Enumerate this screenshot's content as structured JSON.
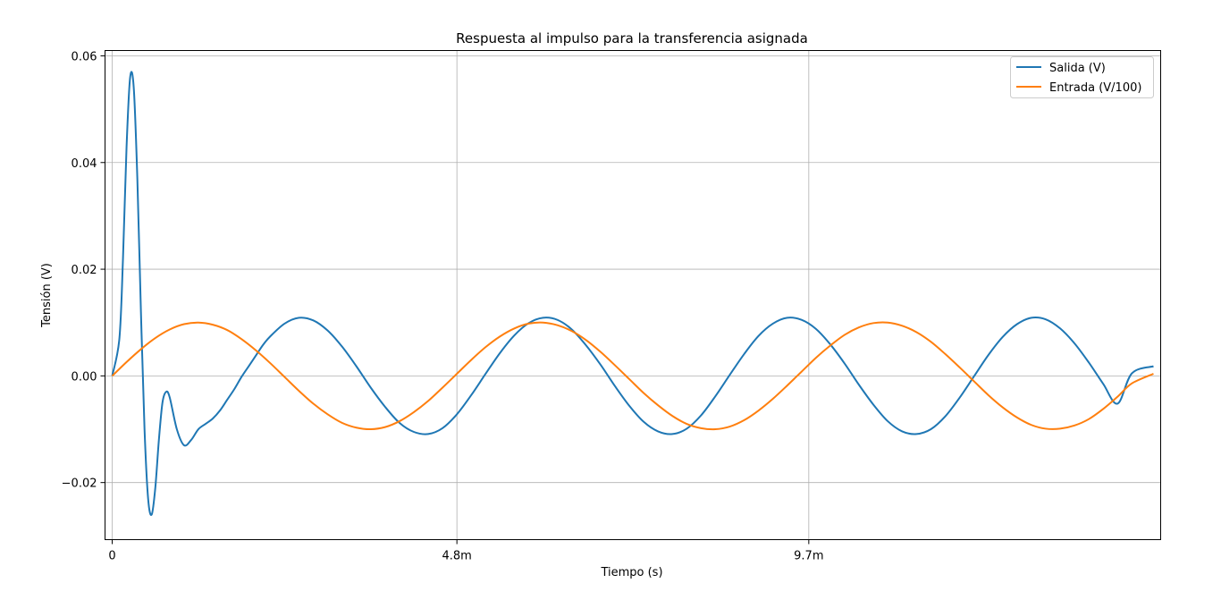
{
  "chart_data": {
    "type": "line",
    "title": "Respuesta al impulso para la transferencia asignada",
    "xlabel": "Tiempo (s)",
    "ylabel": "Tensión (V)",
    "xlim": [
      -0.0001,
      0.0146
    ],
    "ylim": [
      -0.0307,
      0.061
    ],
    "grid": true,
    "legend": "top-right",
    "x_ticks": [
      {
        "value": 0,
        "label": "0"
      },
      {
        "value": 0.0048,
        "label": "4.8m"
      },
      {
        "value": 0.0097,
        "label": "9.7m"
      }
    ],
    "y_ticks": [
      {
        "value": -0.02,
        "label": "−0.02"
      },
      {
        "value": 0.0,
        "label": "0.00"
      },
      {
        "value": 0.02,
        "label": "0.02"
      },
      {
        "value": 0.04,
        "label": "0.04"
      },
      {
        "value": 0.06,
        "label": "0.06"
      }
    ],
    "series": [
      {
        "name": "Salida (V)",
        "color": "#1f77b4",
        "x": [
          0,
          0.0001,
          0.00015,
          0.0002,
          0.00025,
          0.0003,
          0.00035,
          0.0004,
          0.00045,
          0.0005,
          0.00055,
          0.0006,
          0.00065,
          0.0007,
          0.00075,
          0.0008,
          0.0009,
          0.001,
          0.0011,
          0.0012,
          0.0013,
          0.0014,
          0.0015,
          0.0016,
          0.0017,
          0.0018,
          0.0019,
          0.002,
          0.0021,
          0.0022,
          0.0024,
          0.0026,
          0.0028,
          0.003,
          0.0032,
          0.0034,
          0.0036,
          0.0038,
          0.004,
          0.0042,
          0.0044,
          0.0046,
          0.0048,
          0.005,
          0.0052,
          0.0054,
          0.0056,
          0.0058,
          0.006,
          0.0062,
          0.0064,
          0.0066,
          0.0068,
          0.007,
          0.0072,
          0.0074,
          0.0076,
          0.0078,
          0.008,
          0.0082,
          0.0084,
          0.0086,
          0.0088,
          0.009,
          0.0092,
          0.0094,
          0.0096,
          0.0098,
          0.01,
          0.0102,
          0.0104,
          0.0106,
          0.0108,
          0.011,
          0.0112,
          0.0114,
          0.0116,
          0.0118,
          0.012,
          0.0122,
          0.0124,
          0.0126,
          0.0128,
          0.013,
          0.0132,
          0.0134,
          0.0136,
          0.0138,
          0.014,
          0.0142,
          0.0145
        ],
        "y": [
          0.0,
          0.007,
          0.022,
          0.043,
          0.056,
          0.054,
          0.037,
          0.012,
          -0.01,
          -0.023,
          -0.026,
          -0.021,
          -0.012,
          -0.005,
          -0.003,
          -0.004,
          -0.01,
          -0.013,
          -0.012,
          -0.01,
          -0.009,
          -0.008,
          -0.0065,
          -0.0045,
          -0.0025,
          -0.0002,
          0.0018,
          0.0038,
          0.0058,
          0.0074,
          0.0098,
          0.0109,
          0.0104,
          0.0085,
          0.0055,
          0.0018,
          -0.0022,
          -0.0058,
          -0.0088,
          -0.0105,
          -0.0109,
          -0.0098,
          -0.0072,
          -0.0036,
          0.0004,
          0.0043,
          0.0076,
          0.0099,
          0.0109,
          0.0105,
          0.0087,
          0.0057,
          0.0021,
          -0.0019,
          -0.0056,
          -0.0086,
          -0.0104,
          -0.0109,
          -0.0099,
          -0.0074,
          -0.0038,
          0.0002,
          0.0041,
          0.0075,
          0.0098,
          0.0109,
          0.0105,
          0.0088,
          0.0059,
          0.0023,
          -0.0017,
          -0.0054,
          -0.0085,
          -0.0104,
          -0.0109,
          -0.01,
          -0.0076,
          -0.0041,
          -0.0001,
          0.0039,
          0.0073,
          0.0097,
          0.0109,
          0.0106,
          0.0089,
          0.0061,
          0.0025,
          -0.0015,
          -0.0052,
          0.0005,
          0.0018
        ]
      },
      {
        "name": "Entrada (V/100)",
        "color": "#ff7f0e",
        "x": [
          0,
          0.0002,
          0.0004,
          0.0006,
          0.0008,
          0.001,
          0.0012,
          0.0014,
          0.0016,
          0.0018,
          0.002,
          0.0022,
          0.0024,
          0.0026,
          0.0028,
          0.003,
          0.0032,
          0.0034,
          0.0036,
          0.0038,
          0.004,
          0.0042,
          0.0044,
          0.0046,
          0.0048,
          0.005,
          0.0052,
          0.0054,
          0.0056,
          0.0058,
          0.006,
          0.0062,
          0.0064,
          0.0066,
          0.0068,
          0.007,
          0.0072,
          0.0074,
          0.0076,
          0.0078,
          0.008,
          0.0082,
          0.0084,
          0.0086,
          0.0088,
          0.009,
          0.0092,
          0.0094,
          0.0096,
          0.0098,
          0.01,
          0.0102,
          0.0104,
          0.0106,
          0.0108,
          0.011,
          0.0112,
          0.0114,
          0.0116,
          0.0118,
          0.012,
          0.0122,
          0.0124,
          0.0126,
          0.0128,
          0.013,
          0.0132,
          0.0134,
          0.0136,
          0.0138,
          0.014,
          0.0142,
          0.0145
        ],
        "y": [
          0.0,
          0.0026,
          0.005,
          0.0071,
          0.0087,
          0.0097,
          0.01,
          0.0096,
          0.0086,
          0.0069,
          0.0048,
          0.0024,
          -0.0002,
          -0.0028,
          -0.0052,
          -0.0072,
          -0.0088,
          -0.0097,
          -0.01,
          -0.0096,
          -0.0085,
          -0.0068,
          -0.0047,
          -0.0022,
          0.0004,
          0.003,
          0.0054,
          0.0074,
          0.0089,
          0.0098,
          0.01,
          0.0095,
          0.0084,
          0.0067,
          0.0045,
          0.002,
          -0.0006,
          -0.0032,
          -0.0055,
          -0.0075,
          -0.009,
          -0.0098,
          -0.01,
          -0.0095,
          -0.0083,
          -0.0065,
          -0.0043,
          -0.0018,
          0.0008,
          0.0034,
          0.0057,
          0.0077,
          0.0091,
          0.0099,
          0.01,
          0.0094,
          0.0082,
          0.0064,
          0.0041,
          0.0016,
          -0.001,
          -0.0036,
          -0.0059,
          -0.0078,
          -0.0092,
          -0.0099,
          -0.0099,
          -0.0093,
          -0.0081,
          -0.0062,
          -0.0039,
          -0.0014,
          0.0004
        ]
      }
    ]
  }
}
